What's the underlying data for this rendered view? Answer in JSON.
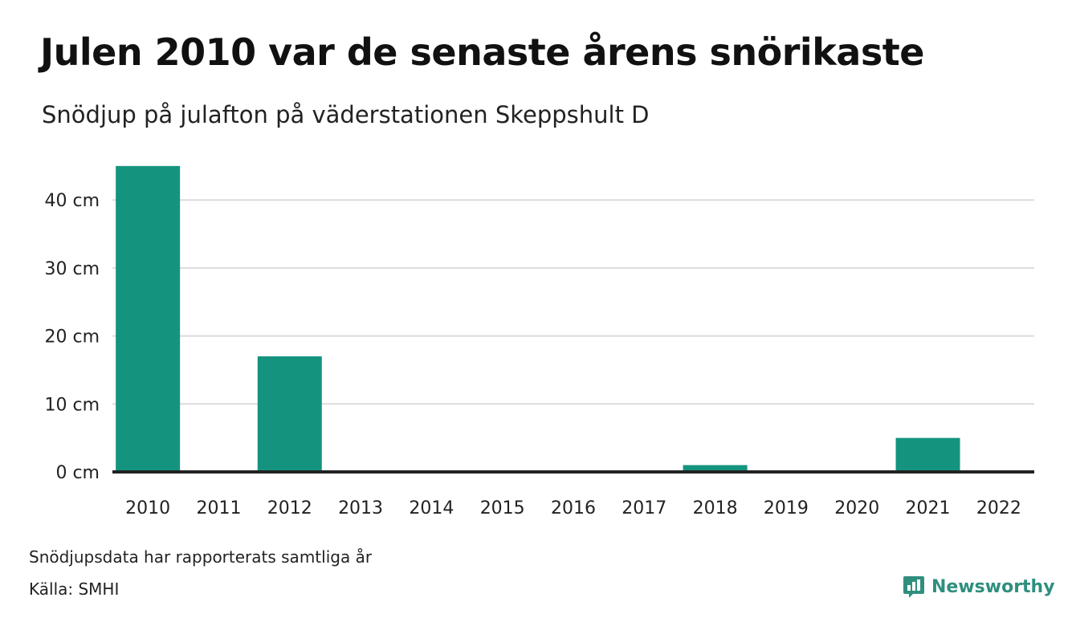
{
  "header": {
    "title": "Julen 2010 var de senaste årens snörikaste",
    "subtitle": "Snödjup på julafton på väderstationen Skeppshult D"
  },
  "chart_data": {
    "type": "bar",
    "categories": [
      "2010",
      "2011",
      "2012",
      "2013",
      "2014",
      "2015",
      "2016",
      "2017",
      "2018",
      "2019",
      "2020",
      "2021",
      "2022"
    ],
    "values": [
      45,
      0,
      17,
      0,
      0,
      0,
      0,
      0,
      1,
      0,
      0,
      5,
      0
    ],
    "ylim": [
      0,
      45
    ],
    "yticks": [
      0,
      10,
      20,
      30,
      40
    ],
    "ytick_suffix": " cm",
    "grid": true,
    "bar_color": "#14947f",
    "unit": "cm"
  },
  "footer": {
    "note": "Snödjupsdata har rapporterats samtliga år",
    "source": "Källa: SMHI",
    "brand": "Newsworthy",
    "brand_icon": "newsworthy-logo-icon",
    "brand_color": "#2f8f7f"
  }
}
